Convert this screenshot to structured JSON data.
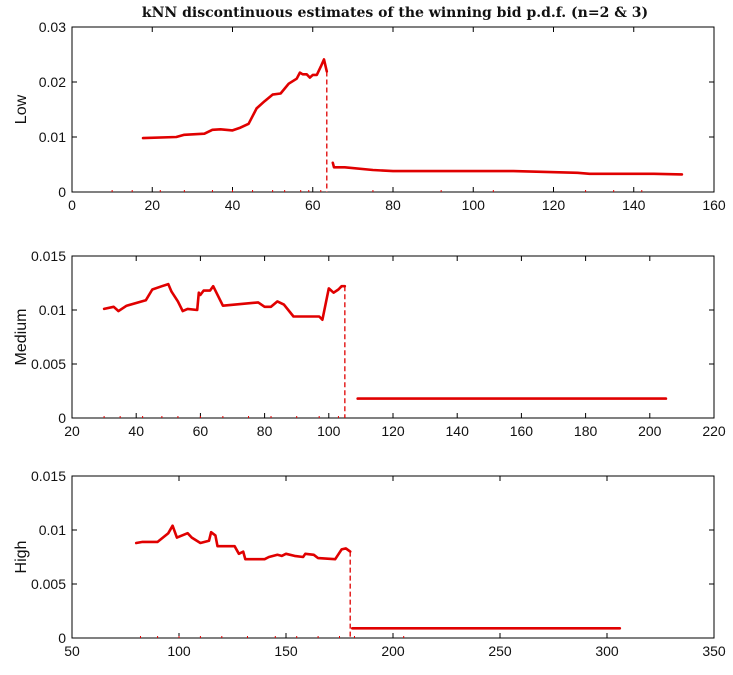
{
  "figure_title": "kNN discontinuous estimates of the winning bid p.d.f. (n=2 & 3)",
  "colors": {
    "series": "#e00000",
    "axes": "#000000",
    "background": "#ffffff"
  },
  "chart_data": [
    {
      "type": "line",
      "title": "",
      "xlabel": "",
      "ylabel": "Low",
      "xlim": [
        0,
        160
      ],
      "ylim": [
        0,
        0.03
      ],
      "xticks": [
        "0",
        "20",
        "40",
        "60",
        "80",
        "100",
        "120",
        "140",
        "160"
      ],
      "yticks": [
        "0",
        "0.01",
        "0.02",
        "0.03"
      ],
      "grid": false,
      "series": [
        {
          "segments": [
            [
              [
                17.7,
                0.0098
              ],
              [
                26,
                0.01
              ],
              [
                28,
                0.0104
              ],
              [
                33,
                0.0106
              ],
              [
                35,
                0.0113
              ],
              [
                37,
                0.0114
              ],
              [
                40,
                0.0112
              ],
              [
                42,
                0.0117
              ],
              [
                44,
                0.0124
              ],
              [
                46,
                0.0152
              ],
              [
                48,
                0.0165
              ],
              [
                50,
                0.0177
              ],
              [
                52,
                0.0179
              ],
              [
                54,
                0.0197
              ],
              [
                56,
                0.0206
              ],
              [
                56.8,
                0.0217
              ],
              [
                57.5,
                0.0214
              ],
              [
                58.5,
                0.0214
              ],
              [
                59.3,
                0.0208
              ],
              [
                60,
                0.0213
              ],
              [
                61,
                0.0213
              ],
              [
                62,
                0.0228
              ],
              [
                62.8,
                0.0241
              ],
              [
                63.5,
                0.0219
              ]
            ],
            [
              [
                65,
                0.0053
              ],
              [
                65.3,
                0.0045
              ],
              [
                68,
                0.0045
              ],
              [
                75,
                0.004
              ],
              [
                80,
                0.0038
              ],
              [
                110,
                0.0038
              ],
              [
                126,
                0.0035
              ],
              [
                129,
                0.0033
              ],
              [
                145,
                0.0033
              ],
              [
                152,
                0.0032
              ]
            ]
          ]
        }
      ],
      "cutoff": {
        "x": 63.5,
        "y": 0.0219
      },
      "rug_x": [
        10,
        15,
        22,
        28,
        35,
        40,
        45,
        50,
        53,
        57,
        59,
        62,
        75,
        92,
        105,
        128,
        135,
        142
      ]
    },
    {
      "type": "line",
      "title": "",
      "xlabel": "",
      "ylabel": "Medium",
      "xlim": [
        20,
        220
      ],
      "ylim": [
        0,
        0.015
      ],
      "xticks": [
        "20",
        "40",
        "60",
        "80",
        "100",
        "120",
        "140",
        "160",
        "180",
        "200",
        "220"
      ],
      "yticks": [
        "0",
        "0.005",
        "0.01",
        "0.015"
      ],
      "grid": false,
      "series": [
        {
          "segments": [
            [
              [
                30,
                0.0101
              ],
              [
                33,
                0.0103
              ],
              [
                34.5,
                0.0099
              ],
              [
                37,
                0.0104
              ],
              [
                43,
                0.0109
              ],
              [
                45,
                0.0119
              ],
              [
                48,
                0.0122
              ],
              [
                50,
                0.0124
              ],
              [
                51,
                0.0117
              ],
              [
                53,
                0.0108
              ],
              [
                54.5,
                0.0099
              ],
              [
                56,
                0.0101
              ],
              [
                59,
                0.01
              ],
              [
                59.5,
                0.0116
              ],
              [
                60,
                0.0114
              ],
              [
                61,
                0.0118
              ],
              [
                63,
                0.0118
              ],
              [
                64,
                0.0122
              ],
              [
                67,
                0.0104
              ],
              [
                78,
                0.0107
              ],
              [
                80,
                0.0103
              ],
              [
                82,
                0.0103
              ],
              [
                84,
                0.0108
              ],
              [
                86,
                0.0105
              ],
              [
                89,
                0.0094
              ],
              [
                97,
                0.0094
              ],
              [
                98,
                0.0091
              ],
              [
                100,
                0.012
              ],
              [
                101.5,
                0.0116
              ],
              [
                103,
                0.0119
              ],
              [
                104,
                0.0122
              ],
              [
                105,
                0.0122
              ]
            ],
            [
              [
                109,
                0.0018
              ],
              [
                205,
                0.0018
              ]
            ]
          ]
        }
      ],
      "cutoff": {
        "x": 105,
        "y": 0.0122
      },
      "rug_x": [
        30,
        35,
        42,
        48,
        53,
        60,
        67,
        75,
        82,
        90,
        97,
        103
      ]
    },
    {
      "type": "line",
      "title": "",
      "xlabel": "",
      "ylabel": "High",
      "xlim": [
        50,
        350
      ],
      "ylim": [
        0,
        0.015
      ],
      "xticks": [
        "50",
        "100",
        "150",
        "200",
        "250",
        "300",
        "350"
      ],
      "yticks": [
        "0",
        "0.005",
        "0.01",
        "0.015"
      ],
      "grid": false,
      "series": [
        {
          "segments": [
            [
              [
                80,
                0.0088
              ],
              [
                83,
                0.0089
              ],
              [
                90,
                0.0089
              ],
              [
                95,
                0.0097
              ],
              [
                97,
                0.0104
              ],
              [
                99,
                0.0093
              ],
              [
                104,
                0.0097
              ],
              [
                106,
                0.0093
              ],
              [
                110,
                0.0088
              ],
              [
                114,
                0.009
              ],
              [
                115,
                0.0098
              ],
              [
                117,
                0.0095
              ],
              [
                118,
                0.0085
              ],
              [
                126,
                0.0085
              ],
              [
                128,
                0.0078
              ],
              [
                130,
                0.008
              ],
              [
                131,
                0.0073
              ],
              [
                140,
                0.0073
              ],
              [
                142,
                0.0075
              ],
              [
                144,
                0.0076
              ],
              [
                146,
                0.0077
              ],
              [
                148,
                0.0076
              ],
              [
                150,
                0.0078
              ],
              [
                154,
                0.0076
              ],
              [
                158,
                0.0075
              ],
              [
                159,
                0.0078
              ],
              [
                163,
                0.0077
              ],
              [
                165,
                0.0074
              ],
              [
                173,
                0.0073
              ],
              [
                176,
                0.0082
              ],
              [
                178,
                0.0083
              ],
              [
                180,
                0.008
              ]
            ],
            [
              [
                181,
                0.0009
              ],
              [
                306,
                0.0009
              ]
            ]
          ]
        }
      ],
      "cutoff": {
        "x": 180,
        "y": 0.008
      },
      "rug_x": [
        82,
        90,
        100,
        110,
        120,
        132,
        145,
        155,
        165,
        175,
        182,
        205
      ]
    }
  ]
}
